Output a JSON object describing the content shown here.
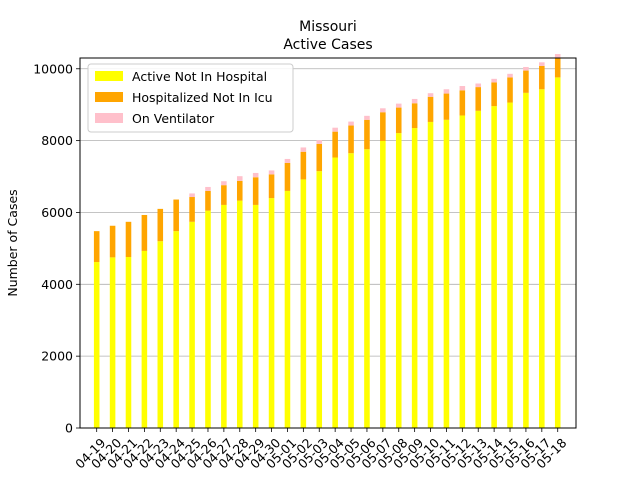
{
  "chart_data": {
    "type": "bar",
    "stacked": true,
    "title_lines": [
      "Missouri",
      "Active Cases"
    ],
    "xlabel": "",
    "ylabel": "Number of Cases",
    "ylim": [
      0,
      10300
    ],
    "yticks": [
      0,
      2000,
      4000,
      6000,
      8000,
      10000
    ],
    "grid": "y",
    "legend_position": "upper-left",
    "categories": [
      "04-19",
      "04-20",
      "04-21",
      "04-22",
      "04-23",
      "04-24",
      "04-25",
      "04-26",
      "04-27",
      "04-28",
      "04-29",
      "04-30",
      "05-01",
      "05-02",
      "05-03",
      "05-04",
      "05-05",
      "05-06",
      "05-07",
      "05-08",
      "05-09",
      "05-10",
      "05-11",
      "05-12",
      "05-13",
      "05-14",
      "05-15",
      "05-16",
      "05-17",
      "05-18"
    ],
    "series": [
      {
        "name": "Active Not In Hospital",
        "color": "#ffff00",
        "values": [
          4620,
          4750,
          4760,
          4930,
          5200,
          5480,
          5740,
          6050,
          6210,
          6330,
          6210,
          6400,
          6600,
          6920,
          7150,
          7530,
          7650,
          7760,
          7990,
          8210,
          8350,
          8520,
          8580,
          8700,
          8830,
          8960,
          9060,
          9330,
          9430,
          9760
        ]
      },
      {
        "name": "Hospitalized Not In Icu",
        "color": "#ffa500",
        "values": [
          860,
          880,
          980,
          1000,
          900,
          880,
          690,
          550,
          550,
          550,
          770,
          660,
          780,
          770,
          760,
          720,
          770,
          820,
          800,
          710,
          690,
          700,
          730,
          700,
          660,
          660,
          700,
          620,
          650,
          550
        ]
      },
      {
        "name": "On Ventilator",
        "color": "#ffc0cb",
        "values": [
          0,
          0,
          0,
          0,
          0,
          0,
          100,
          110,
          110,
          130,
          120,
          110,
          110,
          120,
          100,
          110,
          110,
          110,
          110,
          110,
          120,
          100,
          120,
          120,
          100,
          100,
          100,
          100,
          100,
          100
        ]
      }
    ]
  }
}
